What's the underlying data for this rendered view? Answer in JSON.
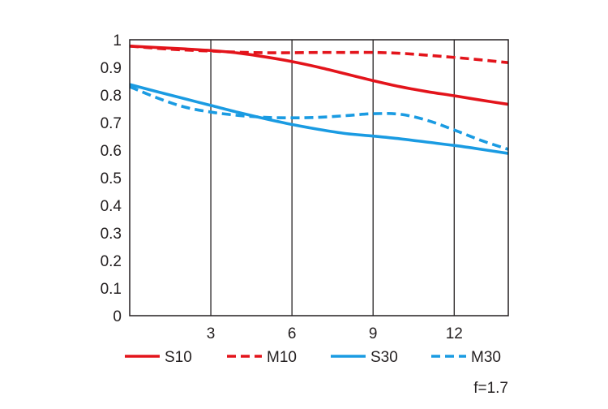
{
  "chart_data": {
    "type": "line",
    "xlim": [
      0,
      14
    ],
    "ylim": [
      0,
      1
    ],
    "x_ticks": [
      3,
      6,
      9,
      12
    ],
    "y_ticks": [
      0,
      0.1,
      0.2,
      0.3,
      0.4,
      0.5,
      0.6,
      0.7,
      0.8,
      0.9,
      1
    ],
    "x_tick_labels": [
      "3",
      "6",
      "9",
      "12"
    ],
    "y_tick_labels": [
      "0",
      "0.1",
      "0.2",
      "0.3",
      "0.4",
      "0.5",
      "0.6",
      "0.7",
      "0.8",
      "0.9",
      "1"
    ],
    "grid": "vertical",
    "legend_position": "bottom",
    "note": "f=1.7",
    "series": [
      {
        "name": "S10",
        "color": "#e3141b",
        "dash": "solid",
        "x": [
          0,
          1,
          2,
          3,
          4,
          5,
          6,
          7,
          8,
          9,
          10,
          11,
          12,
          13,
          14
        ],
        "y": [
          0.977,
          0.972,
          0.967,
          0.961,
          0.952,
          0.938,
          0.921,
          0.9,
          0.876,
          0.852,
          0.83,
          0.812,
          0.797,
          0.781,
          0.766
        ]
      },
      {
        "name": "M10",
        "color": "#e3141b",
        "dash": "dashed",
        "x": [
          0,
          1,
          2,
          3,
          4,
          5,
          6,
          7,
          8,
          9,
          10,
          11,
          12,
          13,
          14
        ],
        "y": [
          0.977,
          0.969,
          0.963,
          0.959,
          0.955,
          0.953,
          0.953,
          0.954,
          0.954,
          0.954,
          0.951,
          0.944,
          0.936,
          0.927,
          0.917
        ]
      },
      {
        "name": "S30",
        "color": "#1a9be2",
        "dash": "solid",
        "x": [
          0,
          1,
          2,
          3,
          4,
          5,
          6,
          7,
          8,
          9,
          10,
          11,
          12,
          13,
          14
        ],
        "y": [
          0.838,
          0.812,
          0.787,
          0.762,
          0.737,
          0.714,
          0.693,
          0.675,
          0.66,
          0.651,
          0.641,
          0.629,
          0.617,
          0.603,
          0.588
        ]
      },
      {
        "name": "M30",
        "color": "#1a9be2",
        "dash": "dashed",
        "x": [
          0,
          1,
          2,
          3,
          4,
          5,
          6,
          7,
          8,
          9,
          10,
          11,
          12,
          13,
          14
        ],
        "y": [
          0.83,
          0.79,
          0.757,
          0.738,
          0.726,
          0.719,
          0.717,
          0.719,
          0.725,
          0.732,
          0.73,
          0.708,
          0.673,
          0.635,
          0.603
        ]
      }
    ]
  }
}
